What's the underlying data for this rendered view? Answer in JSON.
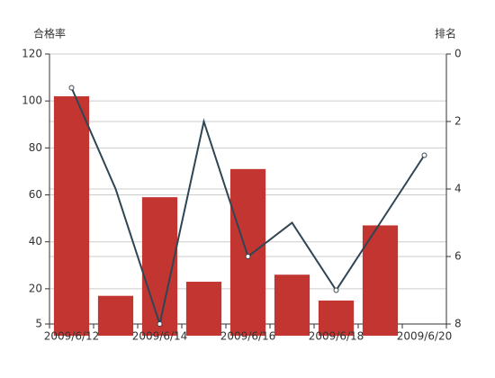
{
  "chart_data": {
    "type": "bar",
    "y_label": "合格率",
    "y2_label": "排名",
    "categories": [
      "2009/6/12",
      null,
      "2009/6/14",
      null,
      "2009/6/16",
      null,
      "2009/6/18",
      null,
      "2009/6/20"
    ],
    "series": [
      {
        "type": "bar",
        "color": "#c23531",
        "values": [
          102,
          17,
          59,
          23,
          71,
          26,
          15,
          47,
          null
        ]
      },
      {
        "type": "line",
        "axis": "y2",
        "color": "#2f4554",
        "values": [
          1,
          4,
          8,
          2,
          6,
          5,
          7,
          5,
          3
        ]
      }
    ],
    "ylim": [
      5,
      120
    ],
    "yticks": [
      5,
      20,
      40,
      60,
      80,
      100,
      120
    ],
    "y2lim": [
      0,
      8
    ],
    "y2ticks": [
      0,
      2,
      4,
      6,
      8
    ],
    "y2_inverse": true,
    "grid": true
  }
}
